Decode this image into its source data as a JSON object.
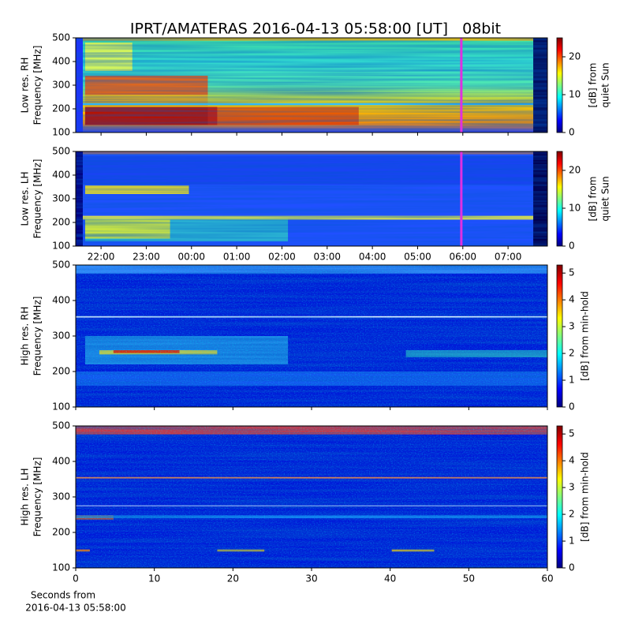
{
  "title": "IPRT/AMATERAS 2016-04-13 05:58:00 [UT]   08bit",
  "chart_data": [
    {
      "type": "heatmap",
      "ylabel": [
        "Low res. RH",
        "Frequency [MHz]"
      ],
      "ylim": [
        100,
        500
      ],
      "yticks": [
        100,
        200,
        300,
        400,
        500
      ],
      "xlim": [
        -2.56,
        7.87
      ],
      "show_xticklabels": false,
      "xticks": [
        {
          "value": -2,
          "label": "22:00"
        },
        {
          "value": -1,
          "label": "23:00"
        },
        {
          "value": 0,
          "label": "00:00"
        },
        {
          "value": 1,
          "label": "01:00"
        },
        {
          "value": 2,
          "label": "02:00"
        },
        {
          "value": 3,
          "label": "03:00"
        },
        {
          "value": 4,
          "label": "04:00"
        },
        {
          "value": 5,
          "label": "05:00"
        },
        {
          "value": 6,
          "label": "06:00"
        },
        {
          "value": 7,
          "label": "07:00"
        }
      ],
      "cursor": {
        "x": 5.9667,
        "color": "#e030e0"
      },
      "colorbar": {
        "label": [
          "[dB] from",
          "quiet Sun"
        ],
        "lim": [
          0,
          25
        ],
        "ticks": [
          0,
          10,
          20
        ]
      }
    },
    {
      "type": "heatmap",
      "ylabel": [
        "Low res. LH",
        "Frequency [MHz]"
      ],
      "ylim": [
        100,
        500
      ],
      "yticks": [
        100,
        200,
        300,
        400,
        500
      ],
      "xlim": [
        -2.56,
        7.87
      ],
      "show_xticklabels": true,
      "xticks": [
        {
          "value": -2,
          "label": "22:00"
        },
        {
          "value": -1,
          "label": "23:00"
        },
        {
          "value": 0,
          "label": "00:00"
        },
        {
          "value": 1,
          "label": "01:00"
        },
        {
          "value": 2,
          "label": "02:00"
        },
        {
          "value": 3,
          "label": "03:00"
        },
        {
          "value": 4,
          "label": "04:00"
        },
        {
          "value": 5,
          "label": "05:00"
        },
        {
          "value": 6,
          "label": "06:00"
        },
        {
          "value": 7,
          "label": "07:00"
        }
      ],
      "cursor": {
        "x": 5.9667,
        "color": "#e030e0"
      },
      "colorbar": {
        "label": [
          "[dB] from",
          "quiet Sun"
        ],
        "lim": [
          0,
          25
        ],
        "ticks": [
          0,
          10,
          20
        ]
      }
    },
    {
      "type": "heatmap",
      "ylabel": [
        "High res. RH",
        "Frequency [MHz]"
      ],
      "ylim": [
        100,
        500
      ],
      "yticks": [
        100,
        200,
        300,
        400,
        500
      ],
      "xlim": [
        0,
        60
      ],
      "show_xticklabels": false,
      "xticks": [
        0,
        10,
        20,
        30,
        40,
        50,
        60
      ],
      "colorbar": {
        "label": [
          "[dB] from min-hold"
        ],
        "lim": [
          0,
          5.3
        ],
        "ticks": [
          0,
          1,
          2,
          3,
          4,
          5
        ]
      }
    },
    {
      "type": "heatmap",
      "ylabel": [
        "High res. LH",
        "Frequency [MHz]"
      ],
      "ylim": [
        100,
        500
      ],
      "yticks": [
        100,
        200,
        300,
        400,
        500
      ],
      "xlim": [
        0,
        60
      ],
      "show_xticklabels": true,
      "xticks": [
        0,
        10,
        20,
        30,
        40,
        50,
        60
      ],
      "xlabel": [
        "Seconds from",
        "2016-04-13 05:58:00"
      ],
      "colorbar": {
        "label": [
          "[dB] from min-hold"
        ],
        "lim": [
          0,
          5.3
        ],
        "ticks": [
          0,
          1,
          2,
          3,
          4,
          5
        ]
      }
    }
  ]
}
